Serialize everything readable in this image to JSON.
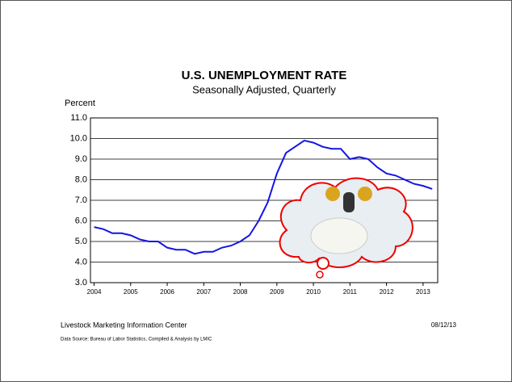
{
  "chart_data": {
    "type": "line",
    "title": "U.S.  UNEMPLOYMENT RATE",
    "subtitle": "Seasonally Adjusted, Quarterly",
    "y_label": "Percent",
    "x": [
      2004,
      2004.25,
      2004.5,
      2004.75,
      2005,
      2005.25,
      2005.5,
      2005.75,
      2006,
      2006.25,
      2006.5,
      2006.75,
      2007,
      2007.25,
      2007.5,
      2007.75,
      2008,
      2008.25,
      2008.5,
      2008.75,
      2009,
      2009.25,
      2009.5,
      2009.75,
      2010,
      2010.25,
      2010.5,
      2010.75,
      2011,
      2011.25,
      2011.5,
      2011.75,
      2012,
      2012.25,
      2012.5,
      2012.75,
      2013,
      2013.25
    ],
    "series": [
      {
        "name": "Unemployment rate",
        "color": "#1414e6",
        "values": [
          5.7,
          5.6,
          5.4,
          5.4,
          5.3,
          5.1,
          5.0,
          5.0,
          4.7,
          4.6,
          4.6,
          4.4,
          4.5,
          4.5,
          4.7,
          4.8,
          5.0,
          5.3,
          6.0,
          6.9,
          8.3,
          9.3,
          9.6,
          9.9,
          9.8,
          9.6,
          9.5,
          9.5,
          9.0,
          9.1,
          9.0,
          8.6,
          8.3,
          8.2,
          8.0,
          7.8,
          7.7,
          7.55
        ]
      }
    ],
    "xlim": [
      2003.9,
      2013.4
    ],
    "xticks": [
      2004,
      2005,
      2006,
      2007,
      2008,
      2009,
      2010,
      2011,
      2012,
      2013
    ],
    "ylim": [
      3,
      11
    ],
    "yticks": [
      {
        "value": 3,
        "label": "3.0"
      },
      {
        "value": 4,
        "label": "4.0"
      },
      {
        "value": 5,
        "label": "5.0"
      },
      {
        "value": 6,
        "label": "6.0"
      },
      {
        "value": 7,
        "label": "7.0"
      },
      {
        "value": 8,
        "label": "8.0"
      },
      {
        "value": 9,
        "label": "9.0"
      },
      {
        "value": 10,
        "label": "10.0"
      },
      {
        "value": 11,
        "label": "11.0"
      }
    ],
    "grid": true
  },
  "footer": {
    "source": "Livestock Marketing Information Center",
    "date": "08/12/13",
    "note": "Data Source:  Bureau of Labor Statistics, Compiled & Analysis by LMIC"
  }
}
